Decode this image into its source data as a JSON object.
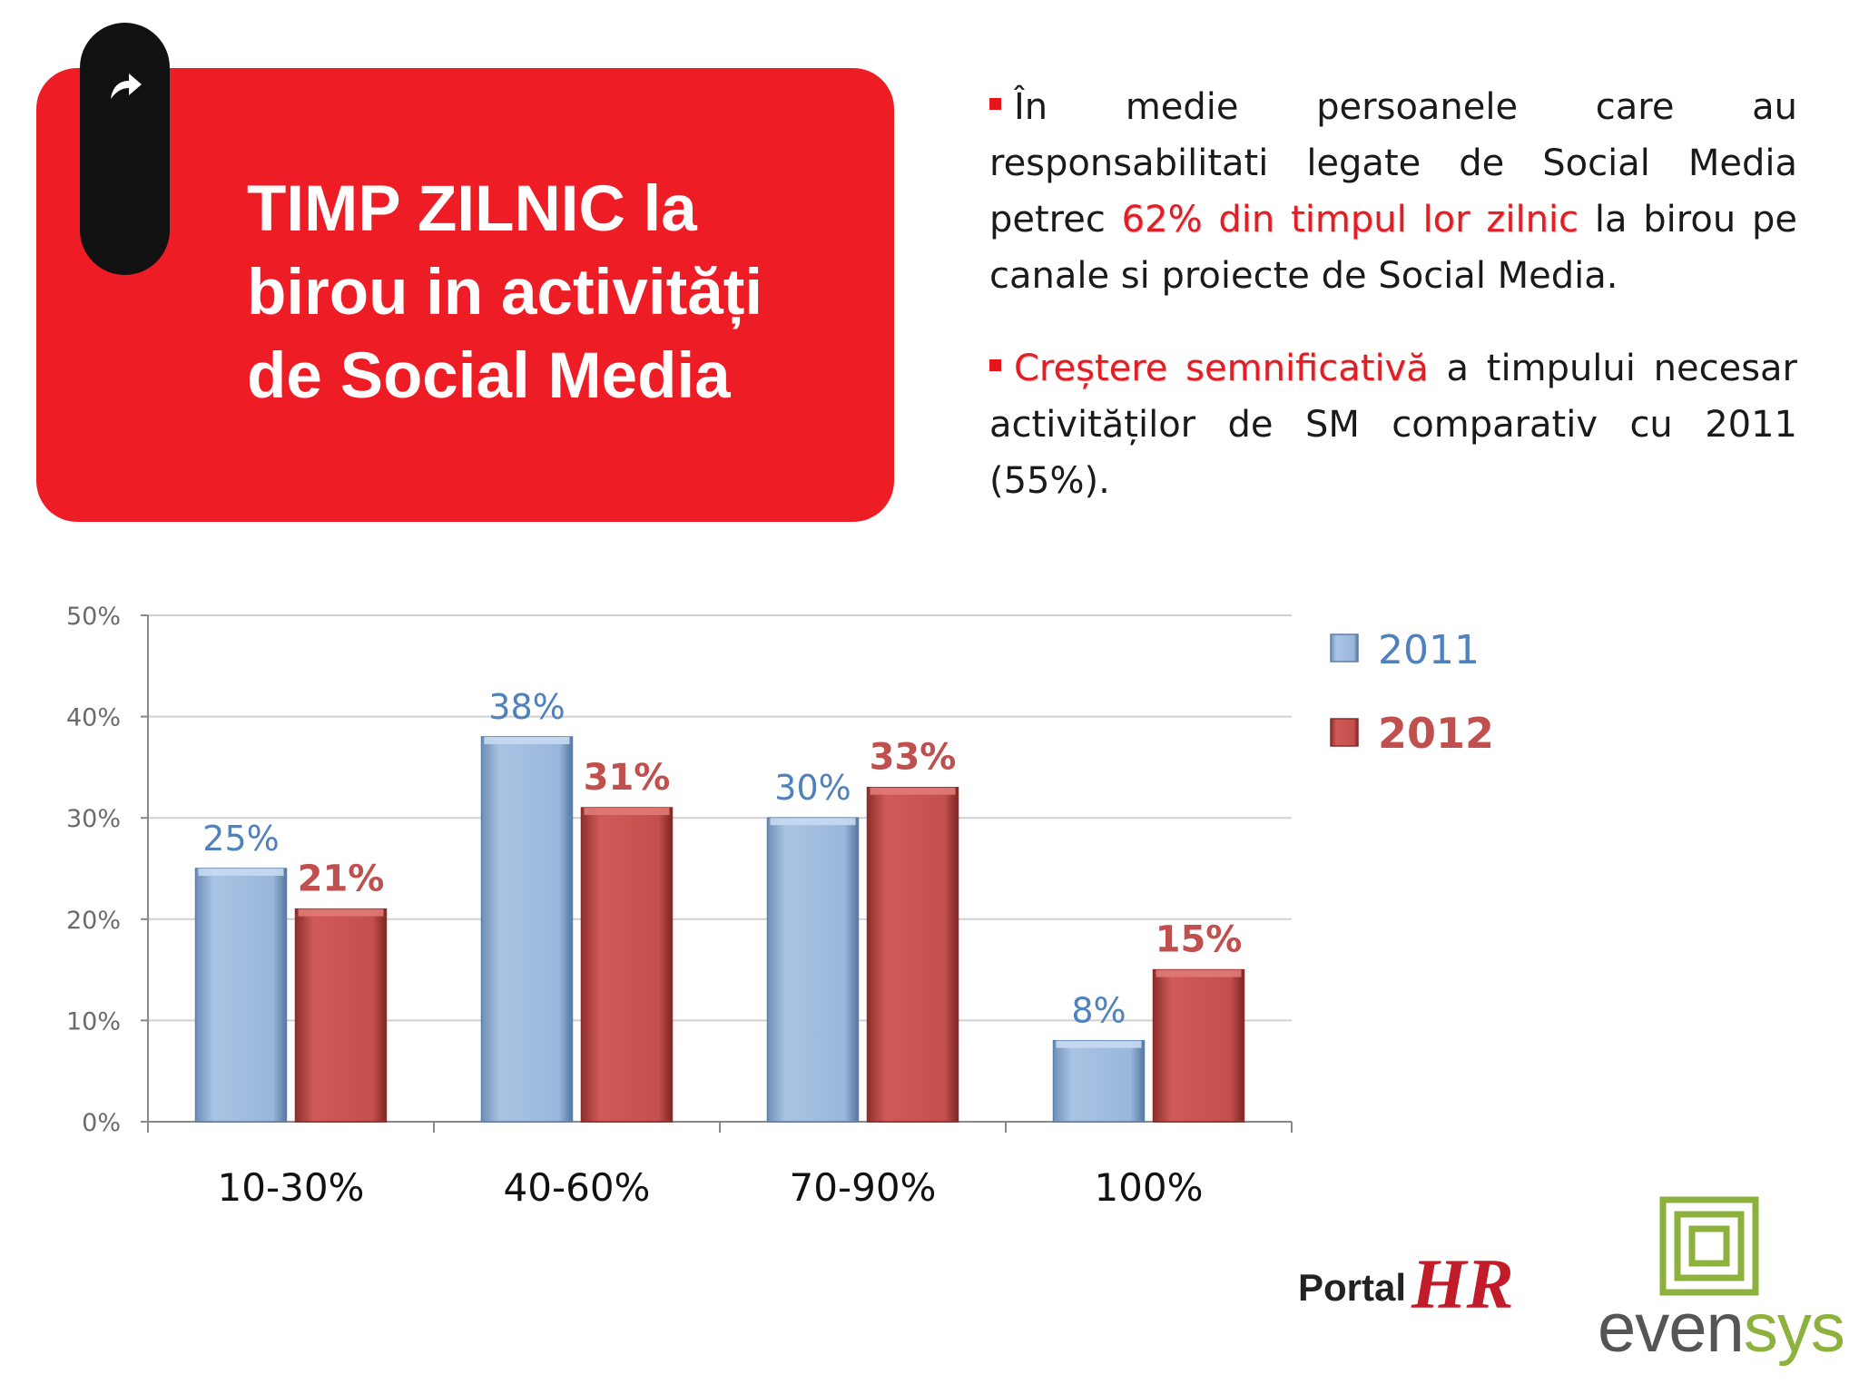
{
  "title": {
    "lines": [
      "TIMP ZILNIC la",
      "birou in activități",
      "de Social Media"
    ]
  },
  "bullets": [
    {
      "pre": "În medie persoanele care au responsabilitati legate de Social Media petrec ",
      "highlight": "62% din timpul lor zilnic",
      "post": " la birou pe canale si proiecte de Social Media."
    },
    {
      "pre": "",
      "highlight": "Creștere semnificativă",
      "post": " a timpului necesar activităților de SM comparativ cu 2011 (55%)."
    }
  ],
  "chart_data": {
    "type": "bar",
    "categories": [
      "10-30%",
      "40-60%",
      "70-90%",
      "100%"
    ],
    "series": [
      {
        "name": "2011",
        "values": [
          25,
          38,
          30,
          8
        ],
        "color": "#95b3d7"
      },
      {
        "name": "2012",
        "values": [
          21,
          31,
          33,
          15
        ],
        "color": "#c0504d"
      }
    ],
    "value_labels": [
      [
        "25%",
        "38%",
        "30%",
        "8%"
      ],
      [
        "21%",
        "31%",
        "33%",
        "15%"
      ]
    ],
    "yticks": [
      "0%",
      "10%",
      "20%",
      "30%",
      "40%",
      "50%"
    ],
    "ylim": [
      0,
      50
    ],
    "grid": true,
    "legend": "right"
  },
  "logos": {
    "portal": "Portal",
    "hr": "HR",
    "evensys_a": "even",
    "evensys_b": "sys"
  },
  "colors": {
    "accent_red": "#ee1c25",
    "series_2011_text": "#4f81bd",
    "series_2012_text": "#c0504d"
  }
}
